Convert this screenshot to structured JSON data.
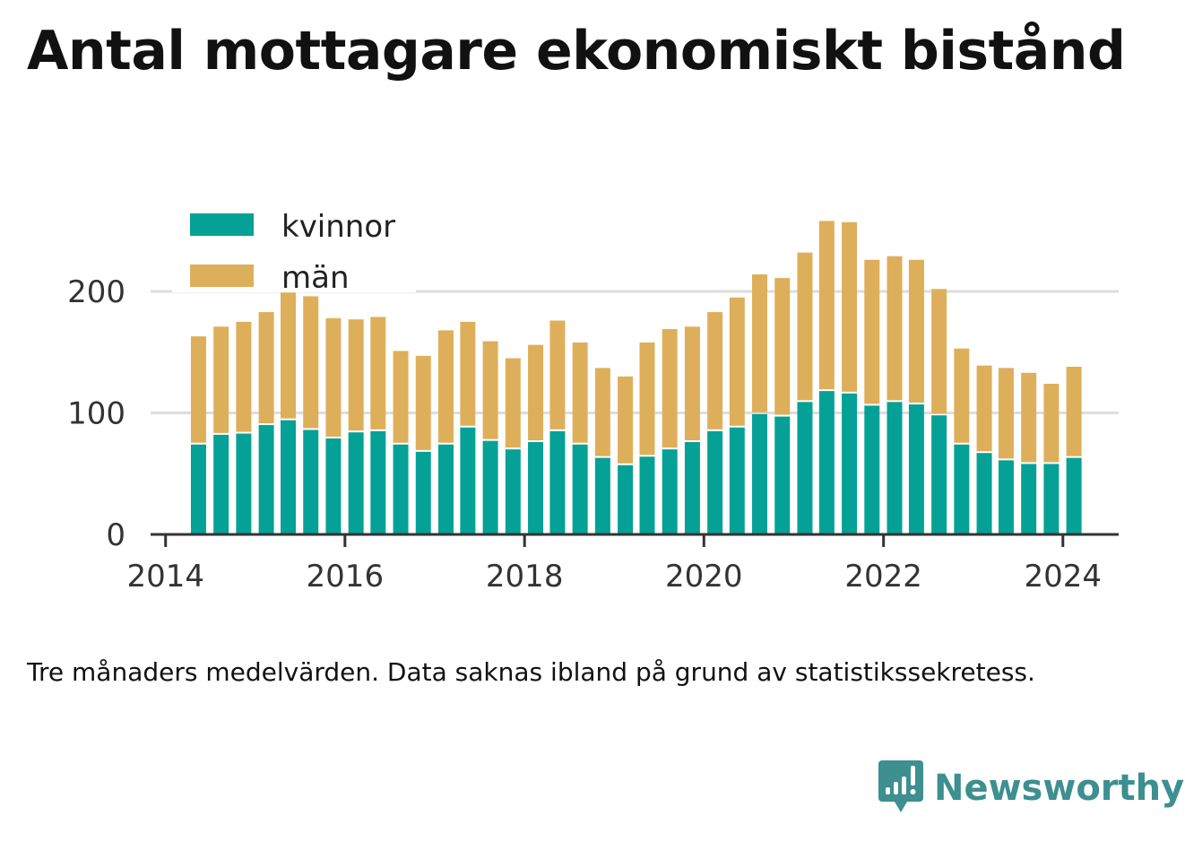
{
  "title": "Antal mottagare ekonomiskt bistånd",
  "caption": "Tre månaders medelvärden. Data saknas ibland på grund av statistikssekretess.",
  "logo": {
    "text": "Newsworthy",
    "icon": "bar-chart-speech-bubble-icon"
  },
  "colors": {
    "kvinnor": "#05a197",
    "man": "#deaf5a",
    "grid": "#dddddd",
    "axis": "#333333",
    "logo": "#3d8f90"
  },
  "chart_data": {
    "type": "bar",
    "stacked": true,
    "title": "Antal mottagare ekonomiskt bistånd",
    "xlabel": "",
    "ylabel": "",
    "ylim": [
      0,
      260
    ],
    "yticks": [
      0,
      100,
      200
    ],
    "xticks": [
      "2014",
      "2016",
      "2018",
      "2020",
      "2022",
      "2024"
    ],
    "xlim": [
      "2013-11-01",
      "2024-08-15"
    ],
    "grid": true,
    "legend_position": "top-left",
    "x": [
      "2014-05-15",
      "2014-08-15",
      "2014-11-15",
      "2015-02-15",
      "2015-05-15",
      "2015-08-15",
      "2015-11-15",
      "2016-02-15",
      "2016-05-15",
      "2016-08-15",
      "2016-11-15",
      "2017-02-15",
      "2017-05-15",
      "2017-08-15",
      "2017-11-15",
      "2018-02-15",
      "2018-05-15",
      "2018-08-15",
      "2018-11-15",
      "2019-02-15",
      "2019-05-15",
      "2019-08-15",
      "2019-11-15",
      "2020-02-15",
      "2020-05-15",
      "2020-08-15",
      "2020-11-15",
      "2021-02-15",
      "2021-05-15",
      "2021-08-15",
      "2021-11-15",
      "2022-02-15",
      "2022-05-15",
      "2022-08-15",
      "2022-11-15",
      "2023-02-15",
      "2023-05-15",
      "2023-08-15",
      "2023-11-15",
      "2024-02-15"
    ],
    "series": [
      {
        "name": "kvinnor",
        "color": "#05a197",
        "values": [
          74,
          82,
          83,
          90,
          94,
          86,
          79,
          84,
          85,
          74,
          68,
          74,
          88,
          77,
          70,
          76,
          85,
          74,
          63,
          57,
          64,
          70,
          76,
          85,
          88,
          99,
          97,
          109,
          118,
          116,
          106,
          109,
          107,
          98,
          74,
          67,
          61,
          58,
          58,
          63
        ]
      },
      {
        "name": "män",
        "color": "#deaf5a",
        "values": [
          89,
          89,
          92,
          93,
          105,
          110,
          99,
          93,
          94,
          77,
          79,
          94,
          87,
          82,
          75,
          80,
          91,
          84,
          74,
          73,
          94,
          99,
          95,
          98,
          107,
          115,
          114,
          123,
          140,
          141,
          120,
          120,
          119,
          104,
          79,
          72,
          76,
          75,
          66,
          75
        ]
      }
    ]
  }
}
